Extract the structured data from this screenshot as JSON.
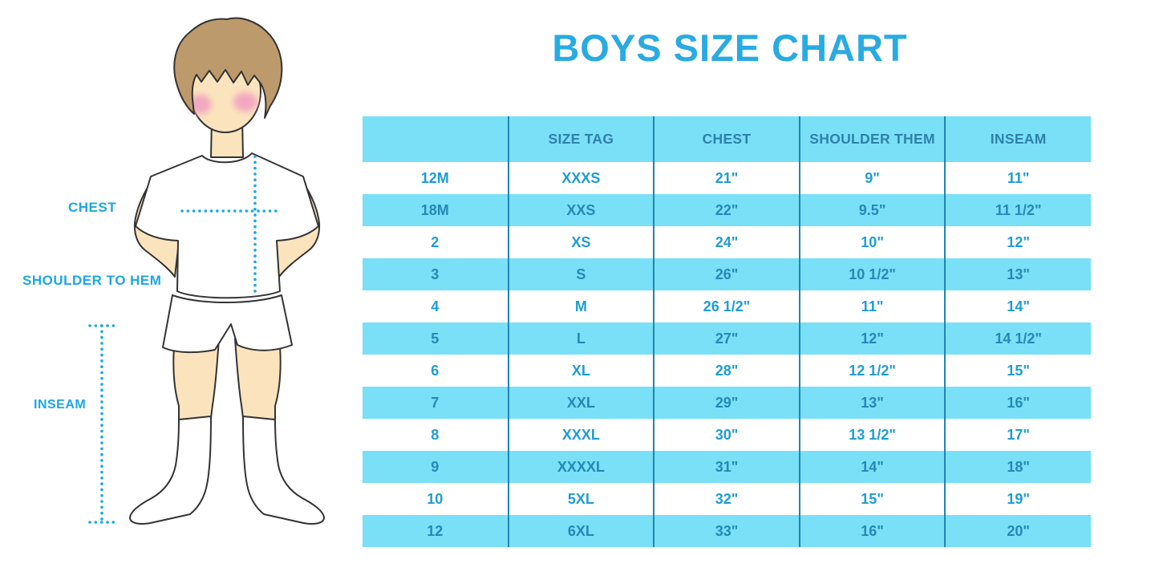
{
  "title": "BOYS SIZE CHART",
  "labels": {
    "chest": "CHEST",
    "shoulder_to_hem": "SHOULDER TO HEM",
    "inseam": "INSEAM"
  },
  "chart_data": {
    "type": "table",
    "title": "BOYS SIZE CHART",
    "columns": [
      "",
      "SIZE TAG",
      "CHEST",
      "SHOULDER THEM",
      "INSEAM"
    ],
    "rows": [
      [
        "12M",
        "XXXS",
        "21\"",
        "9\"",
        "11\""
      ],
      [
        "18M",
        "XXS",
        "22\"",
        "9.5\"",
        "11 1/2\""
      ],
      [
        "2",
        "XS",
        "24\"",
        "10\"",
        "12\""
      ],
      [
        "3",
        "S",
        "26\"",
        "10 1/2\"",
        "13\""
      ],
      [
        "4",
        "M",
        "26 1/2\"",
        "11\"",
        "14\""
      ],
      [
        "5",
        "L",
        "27\"",
        "12\"",
        "14 1/2\""
      ],
      [
        "6",
        "XL",
        "28\"",
        "12 1/2\"",
        "15\""
      ],
      [
        "7",
        "XXL",
        "29\"",
        "13\"",
        "16\""
      ],
      [
        "8",
        "XXXL",
        "30\"",
        "13 1/2\"",
        "17\""
      ],
      [
        "9",
        "XXXXL",
        "31\"",
        "14\"",
        "18\""
      ],
      [
        "10",
        "5XL",
        "32\"",
        "15\"",
        "19\""
      ],
      [
        "12",
        "6XL",
        "33\"",
        "16\"",
        "20\""
      ]
    ],
    "stripe_pattern": "rows alternate white / light-cyan starting white; header light-cyan"
  },
  "colors": {
    "accent": "#29ABE2",
    "table_stripe": "#79E0F8",
    "table_grid": "#1F85B0",
    "header_text": "#2F81A9",
    "row_text": "#1F9CD4",
    "row_text_stripe": "#2489B6",
    "label_text": "#1BA7E2",
    "dotted": "#1BAAE1",
    "skin": "#FBE4BD",
    "hair": "#BD9A6B",
    "cheek": "#F2A8C0",
    "outline": "#333333"
  }
}
